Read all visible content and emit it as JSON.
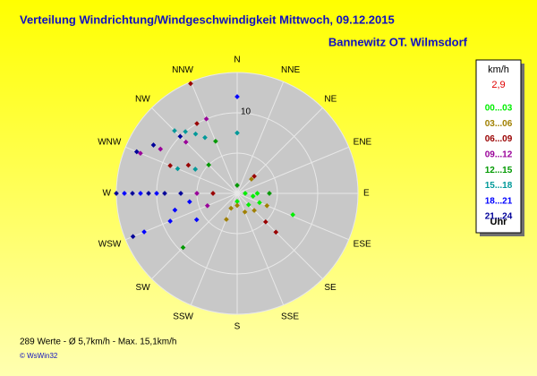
{
  "chart_data": {
    "type": "polar-scatter",
    "title": "Verteilung Windrichtung/Windgeschwindigkeit  Mittwoch, 09.12.2015",
    "subtitle": "Bannewitz OT. Wilmsdorf",
    "categories": [
      "N",
      "NNE",
      "NE",
      "ENE",
      "E",
      "ESE",
      "SE",
      "SSE",
      "S",
      "SSW",
      "SW",
      "WSW",
      "W",
      "WNW",
      "NW",
      "NNW"
    ],
    "rlim": [
      0,
      15
    ],
    "rgrid": [
      5,
      10,
      15
    ],
    "rticks": [
      10
    ],
    "legend_unit": "km/h",
    "current_value": "2,9",
    "legend_footer": "Uhr",
    "footer": "289 Werte  -  Ø 5,7km/h  -  Max. 15,1km/h",
    "copyright": "© WsWin32",
    "series": [
      {
        "name": "00...03",
        "color": "#00ee00",
        "x": [
          90,
          100,
          112.5,
          111,
          180,
          90,
          135
        ],
        "values": [
          1,
          2,
          3,
          7.4,
          1,
          2.5,
          2
        ]
      },
      {
        "name": "03...06",
        "color": "#a08000",
        "x": [
          135,
          157.5,
          202.5,
          45,
          112.5,
          202.5,
          180
        ],
        "values": [
          3,
          2.5,
          2,
          2.5,
          4,
          3.5,
          1.5
        ]
      },
      {
        "name": "06...09",
        "color": "#990000",
        "x": [
          337,
          330,
          300,
          292.5,
          135,
          135,
          45,
          270
        ],
        "values": [
          14.8,
          10,
          7,
          9,
          5,
          6.8,
          3,
          3
        ]
      },
      {
        "name": "09...12",
        "color": "#990099",
        "x": [
          315,
          337.5,
          300,
          292.5,
          270,
          247.5
        ],
        "values": [
          9,
          10,
          11,
          13,
          5,
          4
        ]
      },
      {
        "name": "12...15",
        "color": "#009900",
        "x": [
          337.5,
          225,
          90,
          315,
          0
        ],
        "values": [
          7,
          9.5,
          4,
          5,
          1
        ]
      },
      {
        "name": "15...18",
        "color": "#009999",
        "x": [
          315,
          320,
          325,
          330,
          0,
          300,
          292.5
        ],
        "values": [
          11,
          10,
          9,
          8,
          7.5,
          6,
          8
        ]
      },
      {
        "name": "18...21",
        "color": "#0000ff",
        "x": [
          0,
          270,
          270,
          270,
          247.5,
          247.5,
          255,
          260,
          237
        ],
        "values": [
          12,
          14,
          12,
          10,
          12.5,
          9,
          8,
          6,
          6
        ]
      },
      {
        "name": "21...24",
        "color": "#000099",
        "x": [
          270,
          270,
          270,
          270,
          270,
          247.5,
          292.5,
          300,
          315
        ],
        "values": [
          15,
          13,
          11,
          9,
          7,
          14,
          13.5,
          12,
          10
        ]
      }
    ]
  }
}
